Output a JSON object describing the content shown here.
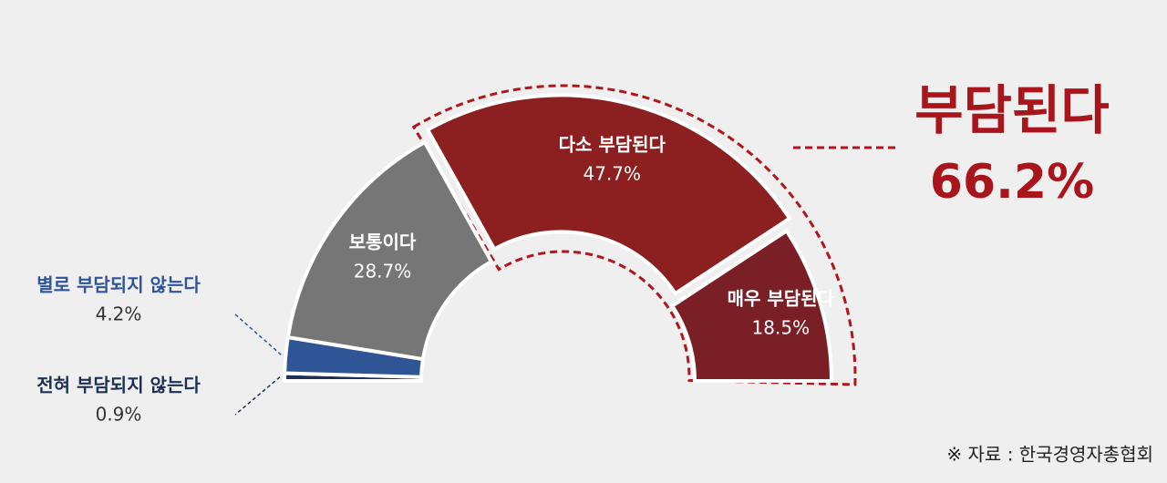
{
  "chart_data": {
    "type": "semi-donut",
    "categories": [
      "전혀 부담되지 않는다",
      "별로 부담되지 않는다",
      "보통이다",
      "다소 부담된다",
      "매우 부담된다"
    ],
    "values": [
      0.9,
      4.2,
      28.7,
      47.7,
      18.5
    ],
    "value_labels": [
      "0.9%",
      "4.2%",
      "28.7%",
      "47.7%",
      "18.5%"
    ],
    "colors": [
      "#1d2f52",
      "#2f5597",
      "#767676",
      "#8c1f1f",
      "#7a1f26"
    ],
    "annotation": {
      "label": "부담된다",
      "value_label": "66.2%"
    },
    "source": "※ 자료 : 한국경영자총협회"
  }
}
